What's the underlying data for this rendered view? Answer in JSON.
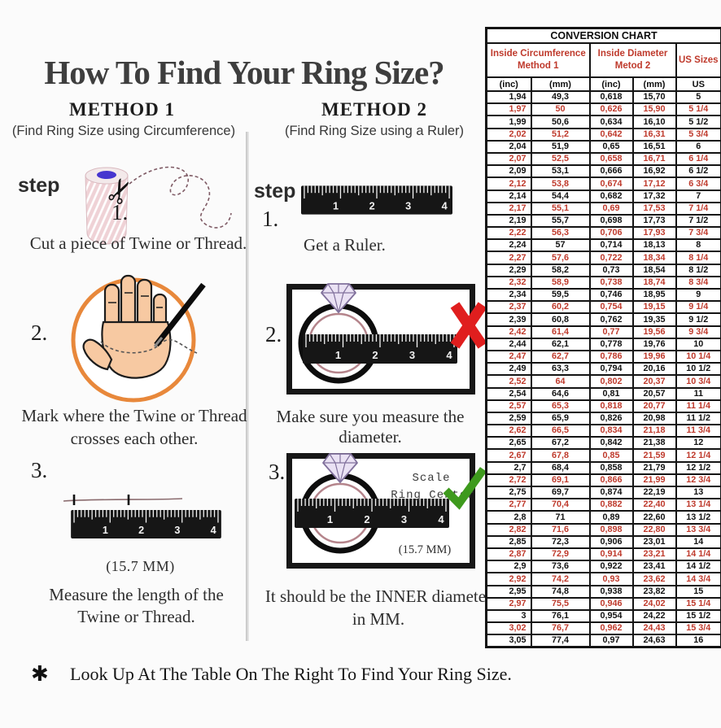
{
  "title": "How To Find Your Ring Size?",
  "icons": {
    "scissors": "✂",
    "asterisk": "✱"
  },
  "colors": {
    "red_text": "#bf3a2c",
    "orange_circle": "#e8883b",
    "hand_skin": "#f7c9a2",
    "twine_pink": "#efd2d6",
    "spool_core_blue": "#4635cf",
    "x_red": "#e01e1e",
    "check_green": "#3e9a1d",
    "ring_inner": "#b4848b",
    "diamond_fill": "#eae2f4",
    "ruler_black": "#161616"
  },
  "ruler_numbers": [
    "1",
    "2",
    "3",
    "4"
  ],
  "method1": {
    "heading": "METHOD 1",
    "subheading": "(Find Ring Size using Circumference)",
    "step_label": "step",
    "steps": [
      {
        "num": "1.",
        "caption": "Cut a piece of  Twine or Thread."
      },
      {
        "num": "2.",
        "caption_line1": "Mark where the Twine or Thread",
        "caption_line2": "crosses each other."
      },
      {
        "num": "3.",
        "measurement": "(15.7 MM)",
        "caption_line1": "Measure the length of the",
        "caption_line2": "Twine or Thread."
      }
    ]
  },
  "method2": {
    "heading": "METHOD 2",
    "subheading": "(Find Ring Size using a Ruler)",
    "step_label": "step",
    "steps": [
      {
        "num": "1.",
        "caption": "Get a Ruler."
      },
      {
        "num": "2.",
        "caption": "Make sure you measure the diameter."
      },
      {
        "num": "3.",
        "scale_note_line1": "Scale",
        "scale_note_line2": "Ring Center",
        "measurement": "(15.7 MM)",
        "caption_line1": "It should be the INNER diameter",
        "caption_line2": "in MM."
      }
    ]
  },
  "footer": {
    "text": "Look Up At The Table On The Right To Find Your Ring Size."
  },
  "table": {
    "title": "CONVERSION CHART",
    "group_headers": [
      {
        "line1": "Inside Circumference",
        "line2": "Method 1"
      },
      {
        "line1": "Inside Diameter",
        "line2": "Metod 2"
      },
      {
        "label": "US Sizes"
      }
    ],
    "sub_headers": [
      "(inc)",
      "(mm)",
      "(inc)",
      "(mm)",
      "US"
    ],
    "rows": [
      [
        "1,94",
        "49,3",
        "0,618",
        "15,70",
        "5"
      ],
      [
        "1,97",
        "50",
        "0,626",
        "15,90",
        "5 1/4"
      ],
      [
        "1,99",
        "50,6",
        "0,634",
        "16,10",
        "5 1/2"
      ],
      [
        "2,02",
        "51,2",
        "0,642",
        "16,31",
        "5 3/4"
      ],
      [
        "2,04",
        "51,9",
        "0,65",
        "16,51",
        "6"
      ],
      [
        "2,07",
        "52,5",
        "0,658",
        "16,71",
        "6 1/4"
      ],
      [
        "2,09",
        "53,1",
        "0,666",
        "16,92",
        "6 1/2"
      ],
      [
        "2,12",
        "53,8",
        "0,674",
        "17,12",
        "6 3/4"
      ],
      [
        "2,14",
        "54,4",
        "0,682",
        "17,32",
        "7"
      ],
      [
        "2,17",
        "55,1",
        "0,69",
        "17,53",
        "7 1/4"
      ],
      [
        "2,19",
        "55,7",
        "0,698",
        "17,73",
        "7 1/2"
      ],
      [
        "2,22",
        "56,3",
        "0,706",
        "17,93",
        "7 3/4"
      ],
      [
        "2,24",
        "57",
        "0,714",
        "18,13",
        "8"
      ],
      [
        "2,27",
        "57,6",
        "0,722",
        "18,34",
        "8 1/4"
      ],
      [
        "2,29",
        "58,2",
        "0,73",
        "18,54",
        "8 1/2"
      ],
      [
        "2,32",
        "58,9",
        "0,738",
        "18,74",
        "8 3/4"
      ],
      [
        "2,34",
        "59,5",
        "0,746",
        "18,95",
        "9"
      ],
      [
        "2,37",
        "60,2",
        "0,754",
        "19,15",
        "9 1/4"
      ],
      [
        "2,39",
        "60,8",
        "0,762",
        "19,35",
        "9 1/2"
      ],
      [
        "2,42",
        "61,4",
        "0,77",
        "19,56",
        "9 3/4"
      ],
      [
        "2,44",
        "62,1",
        "0,778",
        "19,76",
        "10"
      ],
      [
        "2,47",
        "62,7",
        "0,786",
        "19,96",
        "10 1/4"
      ],
      [
        "2,49",
        "63,3",
        "0,794",
        "20,16",
        "10 1/2"
      ],
      [
        "2,52",
        "64",
        "0,802",
        "20,37",
        "10 3/4"
      ],
      [
        "2,54",
        "64,6",
        "0,81",
        "20,57",
        "11"
      ],
      [
        "2,57",
        "65,3",
        "0,818",
        "20,77",
        "11 1/4"
      ],
      [
        "2,59",
        "65,9",
        "0,826",
        "20,98",
        "11 1/2"
      ],
      [
        "2,62",
        "66,5",
        "0,834",
        "21,18",
        "11 3/4"
      ],
      [
        "2,65",
        "67,2",
        "0,842",
        "21,38",
        "12"
      ],
      [
        "2,67",
        "67,8",
        "0,85",
        "21,59",
        "12 1/4"
      ],
      [
        "2,7",
        "68,4",
        "0,858",
        "21,79",
        "12 1/2"
      ],
      [
        "2,72",
        "69,1",
        "0,866",
        "21,99",
        "12 3/4"
      ],
      [
        "2,75",
        "69,7",
        "0,874",
        "22,19",
        "13"
      ],
      [
        "2,77",
        "70,4",
        "0,882",
        "22,40",
        "13 1/4"
      ],
      [
        "2,8",
        "71",
        "0,89",
        "22,60",
        "13 1/2"
      ],
      [
        "2,82",
        "71,6",
        "0,898",
        "22,80",
        "13 3/4"
      ],
      [
        "2,85",
        "72,3",
        "0,906",
        "23,01",
        "14"
      ],
      [
        "2,87",
        "72,9",
        "0,914",
        "23,21",
        "14 1/4"
      ],
      [
        "2,9",
        "73,6",
        "0,922",
        "23,41",
        "14 1/2"
      ],
      [
        "2,92",
        "74,2",
        "0,93",
        "23,62",
        "14 3/4"
      ],
      [
        "2,95",
        "74,8",
        "0,938",
        "23,82",
        "15"
      ],
      [
        "2,97",
        "75,5",
        "0,946",
        "24,02",
        "15 1/4"
      ],
      [
        "3",
        "76,1",
        "0,954",
        "24,22",
        "15 1/2"
      ],
      [
        "3,02",
        "76,7",
        "0,962",
        "24,43",
        "15 3/4"
      ],
      [
        "3,05",
        "77,4",
        "0,97",
        "24,63",
        "16"
      ]
    ]
  }
}
